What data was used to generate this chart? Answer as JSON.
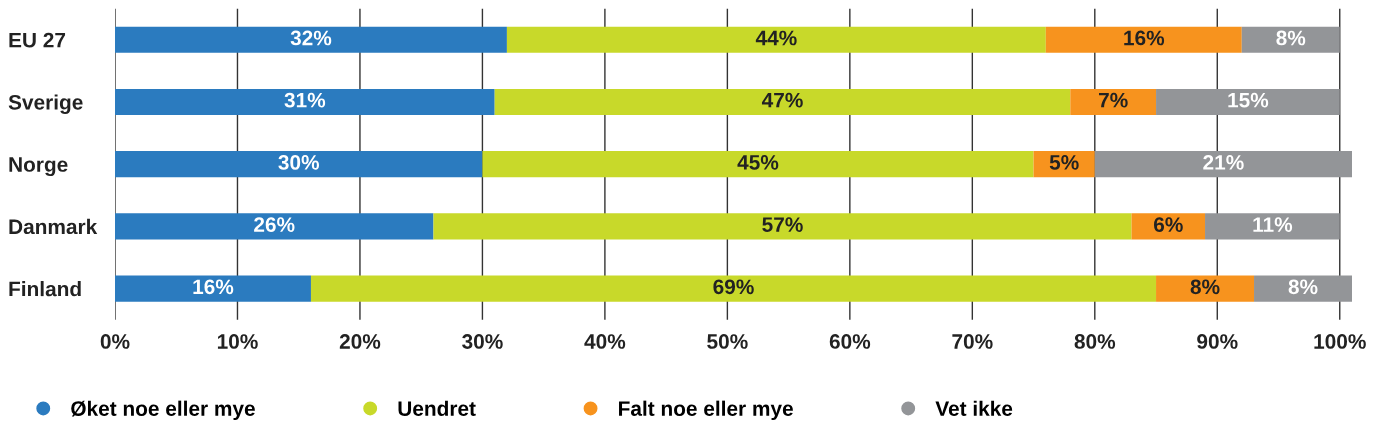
{
  "chart_data": {
    "type": "bar",
    "orientation": "horizontal",
    "stacked": true,
    "categories": [
      "EU 27",
      "Sverige",
      "Norge",
      "Danmark",
      "Finland"
    ],
    "series": [
      {
        "name": "Øket noe eller mye",
        "color": "#2b7bbf",
        "values": [
          32,
          31,
          30,
          26,
          16
        ],
        "value_labels": [
          "32%",
          "31%",
          "30%",
          "26%",
          "16%"
        ]
      },
      {
        "name": "Uendret",
        "color": "#c8d92a",
        "values": [
          44,
          47,
          45,
          57,
          69
        ],
        "value_labels": [
          "44%",
          "47%",
          "45%",
          "57%",
          "69%"
        ]
      },
      {
        "name": "Falt noe eller mye",
        "color": "#f7931e",
        "values": [
          16,
          7,
          5,
          6,
          8
        ],
        "value_labels": [
          "16%",
          "7%",
          "5%",
          "6%",
          "8%"
        ]
      },
      {
        "name": "Vet ikke",
        "color": "#939598",
        "values": [
          8,
          15,
          21,
          11,
          8
        ],
        "value_labels": [
          "8%",
          "15%",
          "21%",
          "11%",
          "8%"
        ]
      }
    ],
    "xlim": [
      0,
      101
    ],
    "xticks": [
      {
        "value": 0,
        "label": "0%"
      },
      {
        "value": 10,
        "label": "10%"
      },
      {
        "value": 20,
        "label": "20%"
      },
      {
        "value": 30,
        "label": "30%"
      },
      {
        "value": 40,
        "label": "40%"
      },
      {
        "value": 50,
        "label": "50%"
      },
      {
        "value": 60,
        "label": "60%"
      },
      {
        "value": 70,
        "label": "70%"
      },
      {
        "value": 80,
        "label": "80%"
      },
      {
        "value": 90,
        "label": "90%"
      },
      {
        "value": 100,
        "label": "100%"
      }
    ],
    "grid": "x",
    "legend": "bottom",
    "marker": "circle"
  }
}
